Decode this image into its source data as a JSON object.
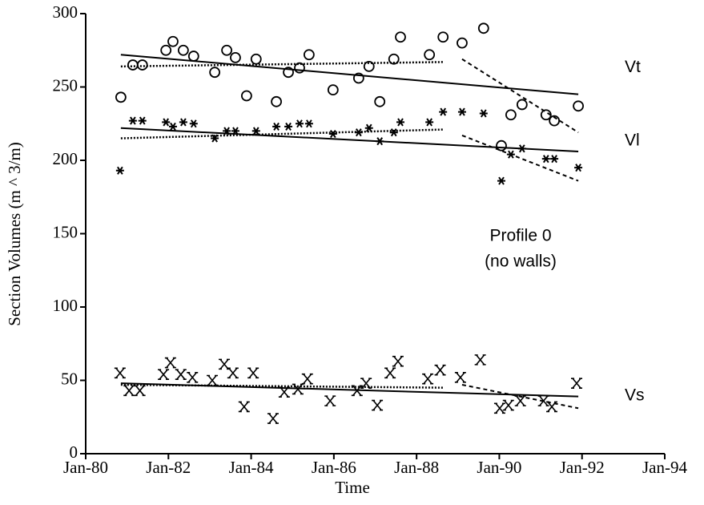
{
  "chart_data": {
    "type": "scatter",
    "xlabel": "Time",
    "ylabel": "Section Volumes (m ^ 3/m)",
    "annotations": [
      "Profile 0",
      "(no walls)"
    ],
    "xlim": [
      1980,
      1994
    ],
    "xticks": [
      {
        "value": 1980,
        "label": "Jan-80"
      },
      {
        "value": 1982,
        "label": "Jan-82"
      },
      {
        "value": 1984,
        "label": "Jan-84"
      },
      {
        "value": 1986,
        "label": "Jan-86"
      },
      {
        "value": 1988,
        "label": "Jan-88"
      },
      {
        "value": 1990,
        "label": "Jan-90"
      },
      {
        "value": 1992,
        "label": "Jan-92"
      },
      {
        "value": 1994,
        "label": "Jan-94"
      }
    ],
    "ylim": [
      0,
      300
    ],
    "yticks": [
      0,
      50,
      100,
      150,
      200,
      250,
      300
    ],
    "series": [
      {
        "name": "Vt",
        "marker": "circle",
        "color": "#000000",
        "x": [
          1980.85,
          1981.14,
          1981.37,
          1981.94,
          1982.11,
          1982.36,
          1982.61,
          1983.12,
          1983.41,
          1983.62,
          1983.89,
          1984.12,
          1984.61,
          1984.9,
          1985.17,
          1985.4,
          1985.98,
          1986.6,
          1986.85,
          1987.11,
          1987.45,
          1987.61,
          1988.31,
          1988.64,
          1989.1,
          1989.62,
          1990.05,
          1990.28,
          1990.55,
          1991.13,
          1991.33,
          1991.91
        ],
        "values": [
          243,
          265,
          265,
          275,
          281,
          275,
          271,
          260,
          275,
          270,
          244,
          269,
          240,
          260,
          263,
          272,
          248,
          256,
          264,
          240,
          269,
          284,
          272,
          284,
          280,
          290,
          210,
          231,
          238,
          231,
          227,
          237
        ],
        "trends": [
          {
            "style": "solid",
            "x": [
              1980.85,
              1991.91
            ],
            "values": [
              272,
              245
            ]
          },
          {
            "style": "dotted",
            "x": [
              1980.85,
              1988.64
            ],
            "values": [
              264,
              267
            ]
          },
          {
            "style": "dashed",
            "x": [
              1989.1,
              1991.91
            ],
            "values": [
              269,
              219
            ]
          }
        ]
      },
      {
        "name": "Vl",
        "marker": "asterisk",
        "color": "#000000",
        "x": [
          1980.83,
          1981.14,
          1981.37,
          1981.94,
          1982.11,
          1982.36,
          1982.61,
          1983.12,
          1983.41,
          1983.62,
          1984.12,
          1984.61,
          1984.9,
          1985.17,
          1985.4,
          1985.98,
          1986.6,
          1986.85,
          1987.11,
          1987.45,
          1987.61,
          1988.31,
          1988.64,
          1989.1,
          1989.62,
          1990.05,
          1990.28,
          1990.55,
          1991.13,
          1991.33,
          1991.91
        ],
        "values": [
          193,
          227,
          227,
          226,
          223,
          226,
          225,
          215,
          220,
          220,
          220,
          223,
          223,
          225,
          225,
          218,
          219,
          222,
          213,
          219,
          226,
          226,
          233,
          233,
          232,
          186,
          204,
          208,
          201,
          201,
          195
        ],
        "trends": [
          {
            "style": "solid",
            "x": [
              1980.85,
              1991.91
            ],
            "values": [
              222,
              206
            ]
          },
          {
            "style": "dotted",
            "x": [
              1980.85,
              1988.64
            ],
            "values": [
              215,
              221
            ]
          },
          {
            "style": "dashed",
            "x": [
              1989.1,
              1991.91
            ],
            "values": [
              217,
              186
            ]
          }
        ]
      },
      {
        "name": "Vs",
        "marker": "x",
        "color": "#000000",
        "x": [
          1980.83,
          1981.05,
          1981.31,
          1981.88,
          1982.05,
          1982.3,
          1982.58,
          1983.06,
          1983.35,
          1983.56,
          1983.83,
          1984.05,
          1984.53,
          1984.8,
          1985.13,
          1985.36,
          1985.91,
          1986.56,
          1986.78,
          1987.05,
          1987.36,
          1987.55,
          1988.27,
          1988.57,
          1989.06,
          1989.54,
          1990.01,
          1990.22,
          1990.51,
          1991.07,
          1991.27,
          1991.87
        ],
        "values": [
          55,
          43,
          43,
          54,
          62,
          54,
          52,
          50,
          61,
          55,
          32,
          55,
          24,
          42,
          44,
          51,
          36,
          43,
          48,
          33,
          55,
          63,
          51,
          57,
          52,
          64,
          31,
          33,
          36,
          36,
          32,
          48
        ],
        "trends": [
          {
            "style": "solid",
            "x": [
              1980.85,
              1991.91
            ],
            "values": [
              48,
              39
            ]
          },
          {
            "style": "dotted",
            "x": [
              1980.85,
              1988.64
            ],
            "values": [
              47,
              45
            ]
          },
          {
            "style": "dashed",
            "x": [
              1989.1,
              1991.91
            ],
            "values": [
              47,
              31
            ]
          }
        ]
      }
    ]
  }
}
